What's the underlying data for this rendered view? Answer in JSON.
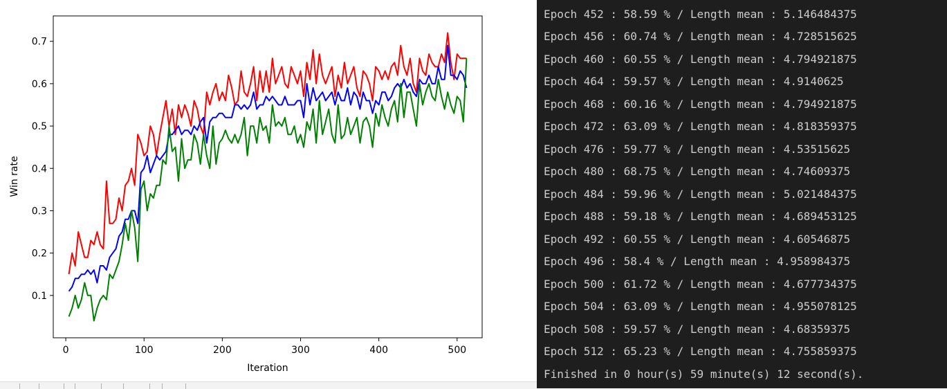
{
  "chart_data": {
    "type": "line",
    "xlabel": "Iteration",
    "ylabel": "Win rate",
    "xlim": [
      -16,
      532
    ],
    "ylim": [
      -0.0,
      0.76
    ],
    "xticks": [
      0,
      100,
      200,
      300,
      400,
      500
    ],
    "yticks": [
      0.1,
      0.2,
      0.3,
      0.4,
      0.5,
      0.6,
      0.7
    ],
    "xtick_labels": [
      "0",
      "100",
      "200",
      "300",
      "400",
      "500"
    ],
    "ytick_labels": [
      "0.1",
      "0.2",
      "0.3",
      "0.4",
      "0.5",
      "0.6",
      "0.7"
    ],
    "grid": false,
    "legend": "none",
    "x": [
      4,
      8,
      12,
      16,
      20,
      24,
      28,
      32,
      36,
      40,
      44,
      48,
      52,
      56,
      60,
      64,
      68,
      72,
      76,
      80,
      84,
      88,
      92,
      96,
      100,
      104,
      108,
      112,
      116,
      120,
      124,
      128,
      132,
      136,
      140,
      144,
      148,
      152,
      156,
      160,
      164,
      168,
      172,
      176,
      180,
      184,
      188,
      192,
      196,
      200,
      204,
      208,
      212,
      216,
      220,
      224,
      228,
      232,
      236,
      240,
      244,
      248,
      252,
      256,
      260,
      264,
      268,
      272,
      276,
      280,
      284,
      288,
      292,
      296,
      300,
      304,
      308,
      312,
      316,
      320,
      324,
      328,
      332,
      336,
      340,
      344,
      348,
      352,
      356,
      360,
      364,
      368,
      372,
      376,
      380,
      384,
      388,
      392,
      396,
      400,
      404,
      408,
      412,
      416,
      420,
      424,
      428,
      432,
      436,
      440,
      444,
      448,
      452,
      456,
      460,
      464,
      468,
      472,
      476,
      480,
      484,
      488,
      492,
      496,
      500,
      504,
      508,
      512
    ],
    "series": [
      {
        "color": "#ff0000",
        "values": [
          0.15,
          0.2,
          0.17,
          0.25,
          0.22,
          0.19,
          0.19,
          0.23,
          0.22,
          0.25,
          0.22,
          0.21,
          0.37,
          0.27,
          0.27,
          0.28,
          0.33,
          0.3,
          0.36,
          0.37,
          0.4,
          0.36,
          0.48,
          0.46,
          0.43,
          0.44,
          0.5,
          0.48,
          0.43,
          0.48,
          0.52,
          0.56,
          0.5,
          0.54,
          0.48,
          0.55,
          0.52,
          0.55,
          0.53,
          0.5,
          0.56,
          0.54,
          0.5,
          0.48,
          0.58,
          0.55,
          0.58,
          0.6,
          0.56,
          0.58,
          0.56,
          0.62,
          0.59,
          0.55,
          0.56,
          0.63,
          0.58,
          0.57,
          0.6,
          0.64,
          0.56,
          0.63,
          0.58,
          0.63,
          0.58,
          0.66,
          0.6,
          0.62,
          0.64,
          0.6,
          0.59,
          0.64,
          0.62,
          0.6,
          0.63,
          0.57,
          0.65,
          0.61,
          0.68,
          0.6,
          0.67,
          0.62,
          0.6,
          0.62,
          0.64,
          0.57,
          0.62,
          0.59,
          0.65,
          0.6,
          0.62,
          0.64,
          0.59,
          0.57,
          0.63,
          0.62,
          0.6,
          0.56,
          0.64,
          0.63,
          0.61,
          0.63,
          0.61,
          0.64,
          0.65,
          0.62,
          0.69,
          0.64,
          0.62,
          0.66,
          0.6,
          0.58,
          0.66,
          0.63,
          0.62,
          0.67,
          0.65,
          0.64,
          0.64,
          0.67,
          0.65,
          0.72,
          0.65,
          0.61,
          0.67,
          0.66,
          0.66,
          0.66
        ]
      },
      {
        "color": "#0000ff",
        "values": [
          0.11,
          0.12,
          0.14,
          0.14,
          0.15,
          0.15,
          0.16,
          0.15,
          0.16,
          0.13,
          0.17,
          0.17,
          0.16,
          0.19,
          0.2,
          0.21,
          0.24,
          0.25,
          0.28,
          0.28,
          0.3,
          0.3,
          0.27,
          0.39,
          0.4,
          0.43,
          0.39,
          0.41,
          0.43,
          0.42,
          0.43,
          0.44,
          0.48,
          0.48,
          0.49,
          0.5,
          0.48,
          0.49,
          0.49,
          0.48,
          0.5,
          0.49,
          0.51,
          0.52,
          0.46,
          0.51,
          0.52,
          0.52,
          0.53,
          0.53,
          0.52,
          0.52,
          0.52,
          0.55,
          0.55,
          0.54,
          0.55,
          0.54,
          0.55,
          0.58,
          0.54,
          0.55,
          0.55,
          0.57,
          0.56,
          0.57,
          0.56,
          0.55,
          0.55,
          0.57,
          0.55,
          0.55,
          0.55,
          0.56,
          0.56,
          0.52,
          0.6,
          0.55,
          0.59,
          0.56,
          0.57,
          0.58,
          0.56,
          0.57,
          0.58,
          0.55,
          0.58,
          0.56,
          0.56,
          0.59,
          0.55,
          0.58,
          0.57,
          0.54,
          0.58,
          0.56,
          0.56,
          0.53,
          0.56,
          0.55,
          0.58,
          0.58,
          0.56,
          0.57,
          0.59,
          0.6,
          0.59,
          0.61,
          0.59,
          0.6,
          0.58,
          0.57,
          0.61,
          0.6,
          0.6,
          0.62,
          0.6,
          0.6,
          0.64,
          0.61,
          0.61,
          0.69,
          0.62,
          0.62,
          0.61,
          0.63,
          0.62,
          0.59
        ]
      },
      {
        "color": "#008000",
        "values": [
          0.05,
          0.07,
          0.1,
          0.07,
          0.09,
          0.13,
          0.1,
          0.1,
          0.04,
          0.07,
          0.09,
          0.1,
          0.09,
          0.15,
          0.14,
          0.16,
          0.18,
          0.22,
          0.27,
          0.23,
          0.3,
          0.26,
          0.18,
          0.35,
          0.37,
          0.3,
          0.34,
          0.33,
          0.36,
          0.36,
          0.42,
          0.41,
          0.5,
          0.44,
          0.45,
          0.37,
          0.47,
          0.4,
          0.42,
          0.42,
          0.48,
          0.46,
          0.41,
          0.48,
          0.43,
          0.4,
          0.5,
          0.41,
          0.46,
          0.47,
          0.49,
          0.47,
          0.46,
          0.48,
          0.46,
          0.48,
          0.52,
          0.43,
          0.5,
          0.5,
          0.46,
          0.52,
          0.49,
          0.5,
          0.46,
          0.55,
          0.5,
          0.51,
          0.5,
          0.52,
          0.48,
          0.48,
          0.5,
          0.46,
          0.48,
          0.45,
          0.51,
          0.49,
          0.54,
          0.46,
          0.56,
          0.48,
          0.51,
          0.54,
          0.48,
          0.46,
          0.55,
          0.47,
          0.48,
          0.52,
          0.48,
          0.5,
          0.52,
          0.46,
          0.51,
          0.52,
          0.5,
          0.45,
          0.53,
          0.5,
          0.55,
          0.52,
          0.5,
          0.54,
          0.56,
          0.51,
          0.6,
          0.52,
          0.58,
          0.58,
          0.54,
          0.5,
          0.6,
          0.55,
          0.58,
          0.6,
          0.57,
          0.56,
          0.61,
          0.57,
          0.54,
          0.58,
          0.55,
          0.53,
          0.57,
          0.56,
          0.51,
          0.66
        ]
      }
    ]
  },
  "console": {
    "lines": [
      "Epoch 452 : 58.59 % / Length mean : 5.146484375",
      "Epoch 456 : 60.74 % / Length mean : 4.728515625",
      "Epoch 460 : 60.55 % / Length mean : 4.794921875",
      "Epoch 464 : 59.57 % / Length mean : 4.9140625",
      "Epoch 468 : 60.16 % / Length mean : 4.794921875",
      "Epoch 472 : 63.09 % / Length mean : 4.818359375",
      "Epoch 476 : 59.77 % / Length mean : 4.53515625",
      "Epoch 480 : 68.75 % / Length mean : 4.74609375",
      "Epoch 484 : 59.96 % / Length mean : 5.021484375",
      "Epoch 488 : 59.18 % / Length mean : 4.689453125",
      "Epoch 492 : 60.55 % / Length mean : 4.60546875",
      "Epoch 496 : 58.4 % / Length mean : 4.958984375",
      "Epoch 500 : 61.72 % / Length mean : 4.677734375",
      "Epoch 504 : 63.09 % / Length mean : 4.955078125",
      "Epoch 508 : 59.57 % / Length mean : 4.68359375",
      "Epoch 512 : 65.23 % / Length mean : 4.755859375",
      "Finished in 0 hour(s) 59 minute(s) 12 second(s)."
    ]
  }
}
